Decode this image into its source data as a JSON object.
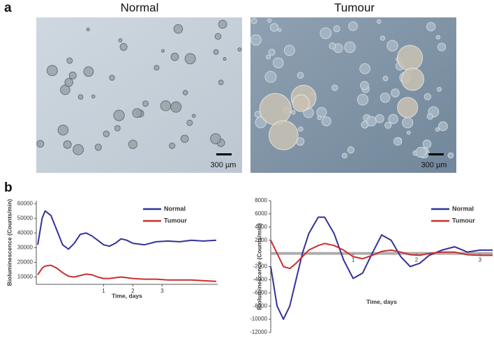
{
  "panel_labels": [
    "a",
    "b"
  ],
  "images": [
    {
      "title": "Normal",
      "scale_bar": "300 µm"
    },
    {
      "title": "Tumour",
      "scale_bar": "300 µm"
    }
  ],
  "chart_data": [
    {
      "type": "line",
      "y_label": "Bioluminescence (Counts/min)",
      "x_label": "Time, days",
      "x": [
        -1.25,
        -1.1,
        -1.0,
        -0.8,
        -0.6,
        -0.4,
        -0.2,
        0,
        0.2,
        0.4,
        0.6,
        0.8,
        1.0,
        1.2,
        1.4,
        1.6,
        1.8,
        2.0,
        2.4,
        2.8,
        3.2,
        3.6,
        4.0,
        4.4,
        4.85
      ],
      "series": [
        {
          "name": "Normal",
          "color": "#35319a",
          "values": [
            32000,
            50000,
            55000,
            52000,
            42000,
            32000,
            29000,
            33000,
            39000,
            40000,
            38000,
            35000,
            32000,
            31000,
            33000,
            36000,
            35000,
            33000,
            32000,
            34000,
            34500,
            34000,
            35000,
            34500,
            35000
          ]
        },
        {
          "name": "Tumour",
          "color": "#cc2e2e",
          "values": [
            11500,
            16000,
            17500,
            18000,
            16000,
            13000,
            10500,
            10000,
            11000,
            12000,
            11500,
            10000,
            9000,
            9000,
            9500,
            10000,
            9500,
            9000,
            8500,
            8500,
            8000,
            8000,
            8000,
            7500,
            7000
          ]
        }
      ],
      "xlim": [
        -1.3,
        4.9
      ],
      "ylim": [
        5000,
        62000
      ],
      "xticks": [
        1,
        2,
        3
      ],
      "yticks": [
        10000,
        20000,
        30000,
        40000,
        50000,
        60000
      ],
      "legend": "upper right"
    },
    {
      "type": "line",
      "y_label": "Bioluminescence (Counts/min)",
      "x_label": "Time, days",
      "x": [
        -0.3,
        -0.2,
        -0.1,
        0,
        0.1,
        0.2,
        0.3,
        0.45,
        0.55,
        0.7,
        0.85,
        1.0,
        1.15,
        1.3,
        1.45,
        1.6,
        1.75,
        1.9,
        2.05,
        2.2,
        2.4,
        2.6,
        2.8,
        3.0,
        3.2
      ],
      "series": [
        {
          "name": "Normal",
          "color": "#35319a",
          "values": [
            -2000,
            -8000,
            -10000,
            -8000,
            -4000,
            0,
            3000,
            5500,
            5500,
            3000,
            -1000,
            -3800,
            -3000,
            0,
            2800,
            2000,
            -500,
            -2000,
            -1500,
            -300,
            500,
            1000,
            200,
            500,
            500
          ]
        },
        {
          "name": "Tumour",
          "color": "#cc2e2e",
          "values": [
            2000,
            0,
            -2000,
            -2300,
            -1500,
            -500,
            500,
            1200,
            1500,
            1200,
            500,
            -500,
            -800,
            -300,
            300,
            500,
            200,
            -200,
            -300,
            0,
            200,
            200,
            -200,
            -300,
            -300
          ]
        }
      ],
      "xlim": [
        -0.3,
        3.2
      ],
      "ylim": [
        -12000,
        8000
      ],
      "xticks": [
        1,
        2,
        3
      ],
      "yticks": [
        -12000,
        -10000,
        -8000,
        -6000,
        -4000,
        -2000,
        2000,
        4000,
        6000,
        8000
      ],
      "legend": "upper right"
    }
  ]
}
